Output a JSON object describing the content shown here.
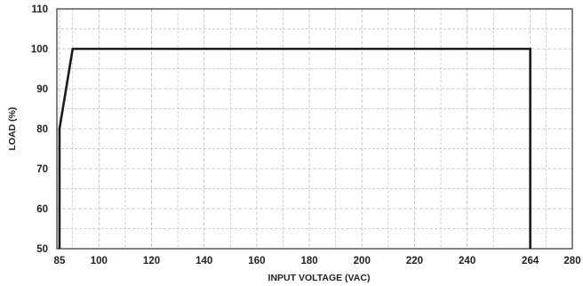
{
  "chart_data": {
    "type": "line",
    "title": "",
    "xlabel": "INPUT VOLTAGE (VAC)",
    "ylabel": "LOAD (%)",
    "xlim": [
      84,
      280
    ],
    "ylim": [
      50,
      110
    ],
    "x_ticks": [
      {
        "value": 85,
        "label": "85"
      },
      {
        "value": 100,
        "label": "100"
      },
      {
        "value": 120,
        "label": "120"
      },
      {
        "value": 140,
        "label": "140"
      },
      {
        "value": 160,
        "label": "160"
      },
      {
        "value": 180,
        "label": "180"
      },
      {
        "value": 200,
        "label": "200"
      },
      {
        "value": 220,
        "label": "220"
      },
      {
        "value": 240,
        "label": "240"
      },
      {
        "value": 264,
        "label": "264"
      },
      {
        "value": 280,
        "label": "280"
      }
    ],
    "y_ticks": [
      {
        "value": 50,
        "label": "50"
      },
      {
        "value": 60,
        "label": "60"
      },
      {
        "value": 70,
        "label": "70"
      },
      {
        "value": 80,
        "label": "80"
      },
      {
        "value": 90,
        "label": "90"
      },
      {
        "value": 100,
        "label": "100"
      },
      {
        "value": 110,
        "label": "110"
      }
    ],
    "grid": true,
    "minor_grid": true,
    "series": [
      {
        "x": [
          85,
          85,
          90,
          264,
          264
        ],
        "y": [
          50,
          80,
          100,
          100,
          50
        ]
      }
    ],
    "colors": {
      "line": "#1a1a1a",
      "grid": "#bdbdbd",
      "frame": "#333333"
    }
  }
}
